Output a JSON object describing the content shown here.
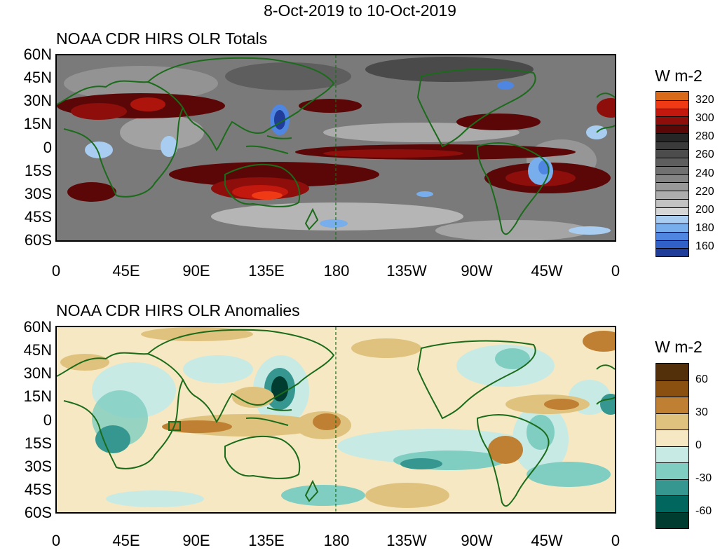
{
  "figure": {
    "title": "8-Oct-2019 to 10-Oct-2019"
  },
  "panels": [
    {
      "id": "totals",
      "title": "NOAA CDR HIRS OLR Totals",
      "colorbar": {
        "title": "W m-2",
        "labels": [
          "320",
          "300",
          "280",
          "260",
          "240",
          "220",
          "200",
          "180",
          "160"
        ],
        "colors": [
          "#d86a1a",
          "#f03a16",
          "#c2180e",
          "#8d0e0b",
          "#5c0707",
          "#262626",
          "#3a3a3a",
          "#4c4c4c",
          "#5e5e5e",
          "#717171",
          "#858585",
          "#999999",
          "#adadad",
          "#c2c2c2",
          "#d6d6d6",
          "#a8cdf0",
          "#78aeeb",
          "#4e86e2",
          "#3060c8",
          "#1f3d99"
        ]
      }
    },
    {
      "id": "anomalies",
      "title": "NOAA CDR HIRS OLR Anomalies",
      "colorbar": {
        "title": "W m-2",
        "labels": [
          "60",
          "30",
          "0",
          "-30",
          "-60"
        ],
        "colors": [
          "#54300a",
          "#8a500f",
          "#bf8033",
          "#dfc27d",
          "#f6e8c3",
          "#c7eae5",
          "#80cdc1",
          "#35978f",
          "#01665e",
          "#003c30"
        ]
      }
    }
  ],
  "axes": {
    "lat_labels": [
      "60N",
      "45N",
      "30N",
      "15N",
      "0",
      "15S",
      "30S",
      "45S",
      "60S"
    ],
    "lon_labels": [
      "0",
      "45E",
      "90E",
      "135E",
      "180",
      "135W",
      "90W",
      "45W",
      "0"
    ]
  }
}
